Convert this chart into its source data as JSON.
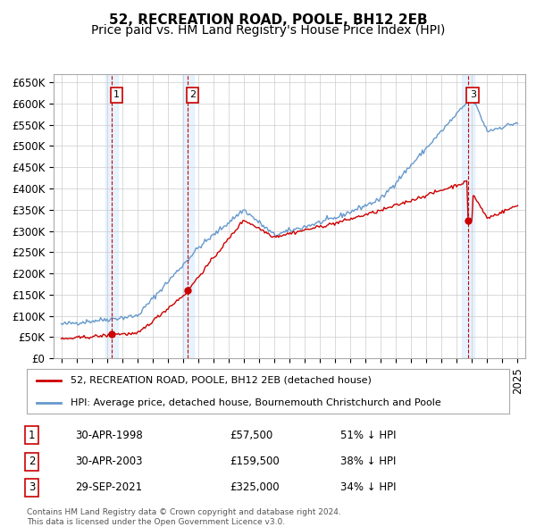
{
  "title": "52, RECREATION ROAD, POOLE, BH12 2EB",
  "subtitle": "Price paid vs. HM Land Registry's House Price Index (HPI)",
  "ylabel": "",
  "ylim": [
    0,
    670000
  ],
  "yticks": [
    0,
    50000,
    100000,
    150000,
    200000,
    250000,
    300000,
    350000,
    400000,
    450000,
    500000,
    550000,
    600000,
    650000
  ],
  "ytick_labels": [
    "£0",
    "£50K",
    "£100K",
    "£150K",
    "£200K",
    "£250K",
    "£300K",
    "£350K",
    "£400K",
    "£450K",
    "£500K",
    "£550K",
    "£600K",
    "£650K"
  ],
  "sale_dates": [
    1998.33,
    2003.33,
    2021.75
  ],
  "sale_prices": [
    57500,
    159500,
    325000
  ],
  "sale_labels": [
    "1",
    "2",
    "3"
  ],
  "sale_color": "#cc0000",
  "hpi_color": "#6699cc",
  "vline_color": "#cc0000",
  "vline_style": "--",
  "vband_color": "#ddeeff",
  "legend_entries": [
    "52, RECREATION ROAD, POOLE, BH12 2EB (detached house)",
    "HPI: Average price, detached house, Bournemouth Christchurch and Poole"
  ],
  "table_data": [
    [
      "1",
      "30-APR-1998",
      "£57,500",
      "51% ↓ HPI"
    ],
    [
      "2",
      "30-APR-2003",
      "£159,500",
      "38% ↓ HPI"
    ],
    [
      "3",
      "29-SEP-2021",
      "£325,000",
      "34% ↓ HPI"
    ]
  ],
  "footnote": "Contains HM Land Registry data © Crown copyright and database right 2024.\nThis data is licensed under the Open Government Licence v3.0.",
  "background_color": "#ffffff",
  "grid_color": "#cccccc",
  "title_fontsize": 11,
  "subtitle_fontsize": 10,
  "tick_fontsize": 8.5,
  "label_box_color": "#ffffff",
  "label_box_edge": "#cc0000"
}
